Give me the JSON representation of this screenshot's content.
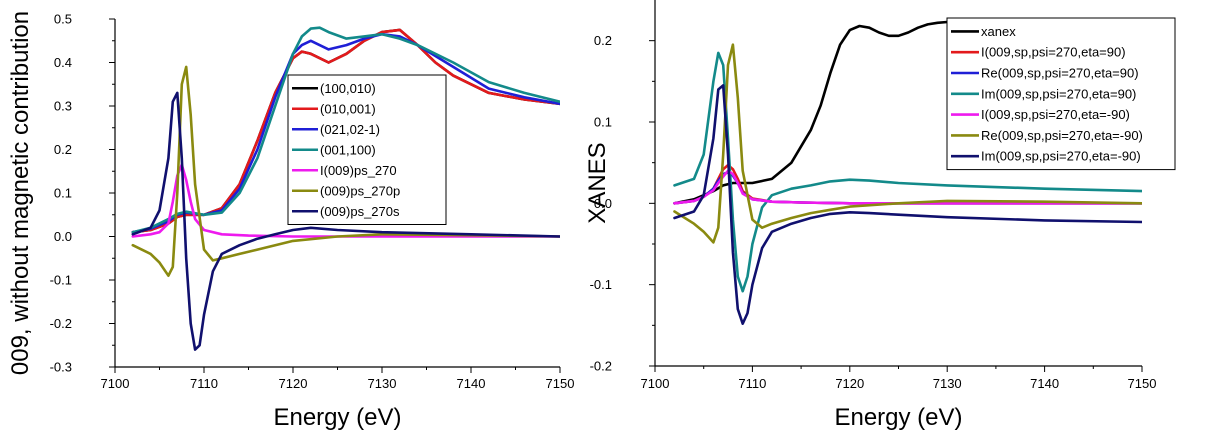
{
  "chart_data": [
    {
      "type": "line",
      "xlabel": "Energy (eV)",
      "ylabel": "009, without magnetic contribution",
      "xlim": [
        7100,
        7150
      ],
      "ylim": [
        -0.3,
        0.5
      ],
      "xticks": [
        7100,
        7110,
        7120,
        7130,
        7140,
        7150
      ],
      "xtick_labels": [
        "7100",
        "7110",
        "7120",
        "7130",
        "7140",
        "7150"
      ],
      "yticks": [
        -0.3,
        -0.2,
        -0.1,
        0.0,
        0.1,
        0.2,
        0.3,
        0.4,
        0.5
      ],
      "ytick_labels": [
        "-0.3",
        "-0.2",
        "-0.1",
        "0.0",
        "0.1",
        "0.2",
        "0.3",
        "0.4",
        "0.5"
      ],
      "legend_position": "center-right",
      "series": [
        {
          "name": "(100,010)",
          "color": "#000000",
          "x": [
            7102,
            7104,
            7106,
            7107,
            7108,
            7110,
            7112,
            7114,
            7116,
            7118,
            7120,
            7121,
            7122,
            7124,
            7126,
            7128,
            7130,
            7132,
            7134,
            7136,
            7138,
            7142,
            7146,
            7150
          ],
          "y": [
            0.01,
            0.015,
            0.03,
            0.045,
            0.05,
            0.05,
            0.065,
            0.12,
            0.22,
            0.33,
            0.41,
            0.425,
            0.42,
            0.4,
            0.42,
            0.45,
            0.47,
            0.475,
            0.44,
            0.4,
            0.37,
            0.33,
            0.315,
            0.305
          ]
        },
        {
          "name": "(010,001)",
          "color": "#e31a1c",
          "x": [
            7102,
            7104,
            7106,
            7107,
            7108,
            7110,
            7112,
            7114,
            7116,
            7118,
            7120,
            7121,
            7122,
            7124,
            7126,
            7128,
            7130,
            7132,
            7134,
            7136,
            7138,
            7142,
            7146,
            7150
          ],
          "y": [
            0.01,
            0.015,
            0.03,
            0.045,
            0.05,
            0.05,
            0.065,
            0.12,
            0.22,
            0.33,
            0.41,
            0.425,
            0.42,
            0.4,
            0.42,
            0.45,
            0.47,
            0.475,
            0.44,
            0.4,
            0.37,
            0.33,
            0.315,
            0.305
          ]
        },
        {
          "name": "(021,02-1)",
          "color": "#1f1fd6",
          "x": [
            7102,
            7104,
            7106,
            7107,
            7108,
            7110,
            7112,
            7114,
            7116,
            7118,
            7120,
            7121,
            7122,
            7124,
            7126,
            7128,
            7130,
            7132,
            7134,
            7138,
            7142,
            7146,
            7150
          ],
          "y": [
            0.01,
            0.018,
            0.035,
            0.05,
            0.055,
            0.05,
            0.06,
            0.11,
            0.2,
            0.32,
            0.42,
            0.44,
            0.45,
            0.43,
            0.44,
            0.455,
            0.465,
            0.46,
            0.44,
            0.39,
            0.34,
            0.32,
            0.305
          ]
        },
        {
          "name": "(001,100)",
          "color": "#138a8a",
          "x": [
            7102,
            7104,
            7106,
            7107,
            7108,
            7110,
            7112,
            7114,
            7116,
            7118,
            7120,
            7121,
            7122,
            7123,
            7124,
            7126,
            7128,
            7130,
            7132,
            7134,
            7138,
            7142,
            7146,
            7150
          ],
          "y": [
            0.01,
            0.02,
            0.04,
            0.052,
            0.057,
            0.05,
            0.055,
            0.1,
            0.18,
            0.3,
            0.42,
            0.46,
            0.478,
            0.48,
            0.47,
            0.455,
            0.46,
            0.465,
            0.455,
            0.44,
            0.4,
            0.355,
            0.33,
            0.31
          ]
        },
        {
          "name": "I(009)ps_270",
          "color": "#ee1aee",
          "x": [
            7102,
            7104,
            7105,
            7106,
            7106.5,
            7107,
            7107.5,
            7108,
            7108.5,
            7109,
            7110,
            7112,
            7115,
            7120,
            7130,
            7150
          ],
          "y": [
            0.0,
            0.005,
            0.01,
            0.03,
            0.08,
            0.14,
            0.165,
            0.13,
            0.08,
            0.04,
            0.015,
            0.005,
            0.002,
            0.0,
            0.0,
            0.0
          ]
        },
        {
          "name": "(009)ps_270p",
          "color": "#8a8a10",
          "x": [
            7102,
            7104,
            7105,
            7106,
            7106.5,
            7107,
            7107.5,
            7108,
            7108.5,
            7109,
            7110,
            7111,
            7112,
            7114,
            7116,
            7118,
            7120,
            7125,
            7130,
            7140,
            7150
          ],
          "y": [
            -0.02,
            -0.04,
            -0.06,
            -0.09,
            -0.07,
            0.1,
            0.35,
            0.39,
            0.28,
            0.12,
            -0.03,
            -0.055,
            -0.05,
            -0.04,
            -0.03,
            -0.02,
            -0.01,
            0.0,
            0.005,
            0.003,
            0.0
          ]
        },
        {
          "name": "(009)ps_270s",
          "color": "#10106e",
          "x": [
            7102,
            7104,
            7105,
            7106,
            7106.5,
            7107,
            7107.5,
            7108,
            7108.5,
            7109,
            7109.5,
            7110,
            7111,
            7112,
            7114,
            7116,
            7118,
            7120,
            7122,
            7125,
            7130,
            7140,
            7150
          ],
          "y": [
            0.005,
            0.02,
            0.06,
            0.18,
            0.31,
            0.33,
            0.18,
            -0.05,
            -0.2,
            -0.26,
            -0.25,
            -0.18,
            -0.08,
            -0.04,
            -0.02,
            -0.005,
            0.005,
            0.015,
            0.02,
            0.015,
            0.01,
            0.005,
            0.0
          ]
        }
      ]
    },
    {
      "type": "line",
      "xlabel": "Energy (eV)",
      "ylabel": "XANES",
      "xlim": [
        7100,
        7150
      ],
      "ylim": [
        -0.2,
        0.25
      ],
      "xticks": [
        7100,
        7110,
        7120,
        7130,
        7140,
        7150
      ],
      "xtick_labels": [
        "7100",
        "7110",
        "7120",
        "7130",
        "7140",
        "7150"
      ],
      "yticks": [
        -0.2,
        -0.1,
        0.0,
        0.1,
        0.2
      ],
      "ytick_labels": [
        "-0.2",
        "-0.1",
        "0.0",
        "0.1",
        "0.2"
      ],
      "legend_position": "top-right",
      "series": [
        {
          "name": "xanex",
          "color": "#000000",
          "x": [
            7102,
            7104,
            7106,
            7107,
            7108,
            7110,
            7112,
            7114,
            7116,
            7117,
            7118,
            7119,
            7120,
            7121,
            7122,
            7123,
            7124,
            7125,
            7126,
            7127,
            7128,
            7129,
            7130,
            7131
          ],
          "y": [
            0.0,
            0.005,
            0.015,
            0.022,
            0.025,
            0.025,
            0.03,
            0.05,
            0.09,
            0.12,
            0.16,
            0.195,
            0.213,
            0.218,
            0.216,
            0.21,
            0.206,
            0.206,
            0.21,
            0.216,
            0.22,
            0.222,
            0.223,
            0.223
          ]
        },
        {
          "name": "I(009,sp,psi=270,eta=90)",
          "color": "#e31a1c",
          "x": [
            7102,
            7104,
            7105,
            7106,
            7106.5,
            7107,
            7107.5,
            7108,
            7108.5,
            7109,
            7110,
            7112,
            7115,
            7120,
            7130,
            7150
          ],
          "y": [
            0.0,
            0.003,
            0.008,
            0.018,
            0.03,
            0.042,
            0.047,
            0.042,
            0.03,
            0.015,
            0.006,
            0.002,
            0.001,
            0.0,
            0.0,
            0.0
          ]
        },
        {
          "name": "Re(009,sp,psi=270,eta=90)",
          "color": "#1f1fd6",
          "x": [
            7102,
            7104,
            7105,
            7106,
            7106.5,
            7107,
            7107.5,
            7108,
            7108.5,
            7109,
            7110,
            7112,
            7115,
            7120,
            7130,
            7150
          ],
          "y": [
            0.0,
            0.003,
            0.008,
            0.018,
            0.028,
            0.036,
            0.038,
            0.034,
            0.025,
            0.013,
            0.005,
            0.002,
            0.001,
            0.0,
            0.0,
            0.0
          ]
        },
        {
          "name": "Im(009,sp,psi=270,eta=90)",
          "color": "#138a8a",
          "x": [
            7102,
            7104,
            7105,
            7106,
            7106.5,
            7107,
            7107.5,
            7108,
            7108.5,
            7109,
            7109.5,
            7110,
            7111,
            7112,
            7114,
            7116,
            7118,
            7120,
            7122,
            7125,
            7130,
            7140,
            7150
          ],
          "y": [
            0.022,
            0.03,
            0.06,
            0.15,
            0.185,
            0.17,
            0.08,
            -0.02,
            -0.09,
            -0.108,
            -0.09,
            -0.05,
            -0.005,
            0.01,
            0.018,
            0.022,
            0.027,
            0.029,
            0.028,
            0.025,
            0.022,
            0.018,
            0.015
          ]
        },
        {
          "name": "I(009,sp,psi=270,eta=-90)",
          "color": "#ee1aee",
          "x": [
            7102,
            7104,
            7105,
            7106,
            7106.5,
            7107,
            7107.5,
            7108,
            7108.5,
            7109,
            7110,
            7112,
            7115,
            7120,
            7130,
            7150
          ],
          "y": [
            0.0,
            0.003,
            0.008,
            0.016,
            0.025,
            0.033,
            0.04,
            0.036,
            0.025,
            0.012,
            0.005,
            0.002,
            0.001,
            0.0,
            0.0,
            0.0
          ]
        },
        {
          "name": "Re(009,sp,psi=270,eta=-90)",
          "color": "#8a8a10",
          "x": [
            7102,
            7104,
            7105,
            7106,
            7106.5,
            7107,
            7107.5,
            7108,
            7108.5,
            7109,
            7110,
            7111,
            7112,
            7114,
            7116,
            7118,
            7120,
            7125,
            7130,
            7140,
            7150
          ],
          "y": [
            -0.01,
            -0.025,
            -0.035,
            -0.048,
            -0.03,
            0.06,
            0.17,
            0.195,
            0.13,
            0.04,
            -0.02,
            -0.03,
            -0.025,
            -0.018,
            -0.012,
            -0.008,
            -0.004,
            0.0,
            0.003,
            0.002,
            0.0
          ]
        },
        {
          "name": "Im(009,sp,psi=270,eta=-90)",
          "color": "#10106e",
          "x": [
            7102,
            7104,
            7105,
            7106,
            7106.5,
            7107,
            7107.5,
            7108,
            7108.5,
            7109,
            7109.5,
            7110,
            7111,
            7112,
            7114,
            7116,
            7118,
            7120,
            7122,
            7125,
            7130,
            7140,
            7150
          ],
          "y": [
            -0.018,
            -0.01,
            0.01,
            0.08,
            0.14,
            0.145,
            0.06,
            -0.06,
            -0.13,
            -0.148,
            -0.135,
            -0.1,
            -0.055,
            -0.035,
            -0.025,
            -0.018,
            -0.013,
            -0.011,
            -0.012,
            -0.014,
            -0.017,
            -0.021,
            -0.023
          ]
        }
      ]
    }
  ]
}
